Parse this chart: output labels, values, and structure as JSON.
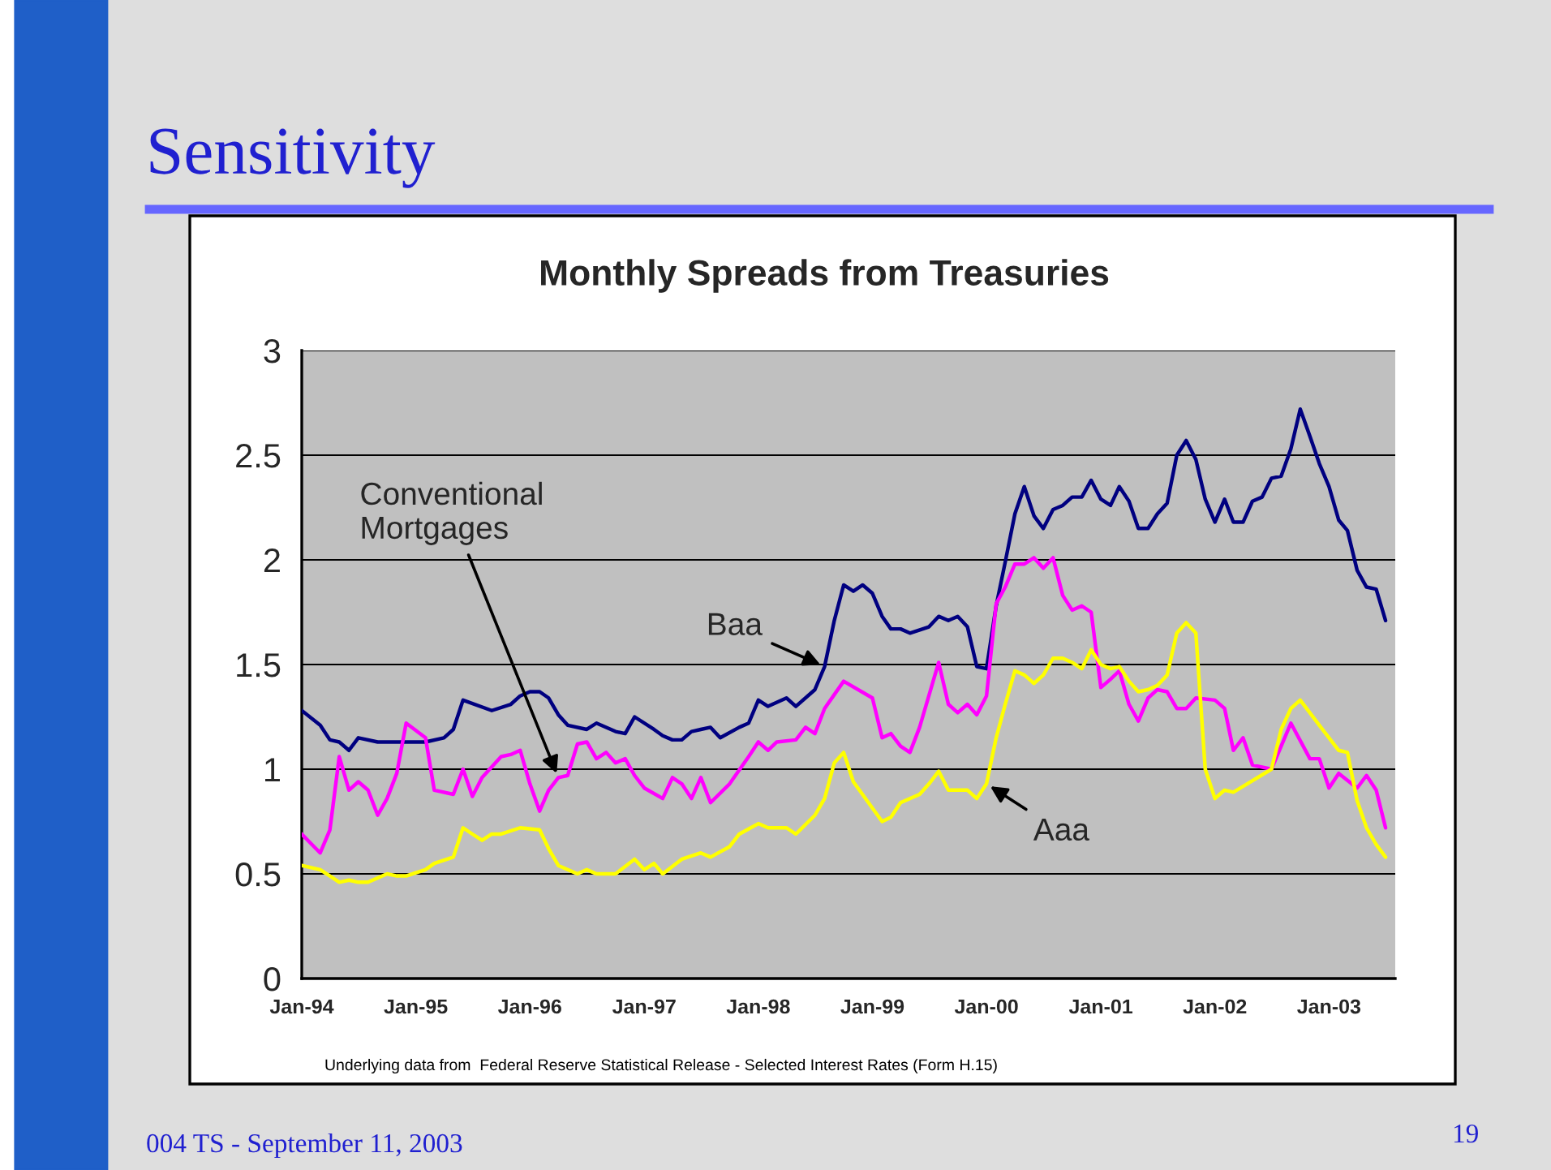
{
  "chart_data": {
    "type": "line",
    "title": "Sensitivity",
    "subtitle": "Monthly Spreads from Treasuries",
    "series": [
      {
        "color": "#000080",
        "x": [
          "1994-01",
          "1994-03",
          "1994-04",
          "1994-05",
          "1994-06",
          "1994-07",
          "1994-09",
          "1995-02",
          "1995-04",
          "1995-05",
          "1995-06",
          "1995-09",
          "1995-11",
          "1995-12",
          "1996-01",
          "1996-02",
          "1996-03",
          "1996-04",
          "1996-05",
          "1996-07",
          "1996-08",
          "1996-10",
          "1996-11",
          "1996-12",
          "1997-02",
          "1997-03",
          "1997-04",
          "1997-05",
          "1997-06",
          "1997-07",
          "1997-08",
          "1997-09",
          "1997-11",
          "1997-12",
          "1998-01",
          "1998-02",
          "1998-04",
          "1998-05",
          "1998-07",
          "1998-08",
          "1998-09",
          "1998-10",
          "1998-11",
          "1998-12",
          "1999-01",
          "1999-02",
          "1999-03",
          "1999-04",
          "1999-05",
          "1999-07",
          "1999-08",
          "1999-09",
          "1999-10",
          "1999-11",
          "1999-12",
          "2000-01",
          "2000-02",
          "2000-03",
          "2000-04",
          "2000-05",
          "2000-06",
          "2000-07",
          "2000-08",
          "2000-09",
          "2000-10",
          "2000-11",
          "2000-12",
          "2001-01",
          "2001-02",
          "2001-03",
          "2001-04",
          "2001-05",
          "2001-06",
          "2001-07",
          "2001-08",
          "2001-09",
          "2001-10",
          "2001-11",
          "2001-12",
          "2002-01",
          "2002-02",
          "2002-03",
          "2002-04",
          "2002-05",
          "2002-06",
          "2002-07",
          "2002-08",
          "2002-09",
          "2002-10",
          "2002-11",
          "2002-12",
          "2003-01",
          "2003-02",
          "2003-03",
          "2003-04",
          "2003-05",
          "2003-06",
          "2003-07"
        ],
        "values": [
          1.28,
          1.21,
          1.14,
          1.13,
          1.09,
          1.15,
          1.13,
          1.13,
          1.15,
          1.19,
          1.33,
          1.28,
          1.31,
          1.35,
          1.37,
          1.37,
          1.34,
          1.26,
          1.21,
          1.19,
          1.22,
          1.18,
          1.17,
          1.25,
          1.19,
          1.16,
          1.14,
          1.14,
          1.18,
          1.19,
          1.2,
          1.15,
          1.2,
          1.22,
          1.33,
          1.3,
          1.34,
          1.3,
          1.38,
          1.49,
          1.71,
          1.88,
          1.85,
          1.88,
          1.84,
          1.73,
          1.67,
          1.67,
          1.65,
          1.68,
          1.73,
          1.71,
          1.73,
          1.68,
          1.49,
          1.48,
          1.78,
          1.99,
          2.22,
          2.35,
          2.21,
          2.15,
          2.24,
          2.26,
          2.3,
          2.3,
          2.38,
          2.29,
          2.26,
          2.35,
          2.28,
          2.15,
          2.15,
          2.22,
          2.27,
          2.5,
          2.57,
          2.48,
          2.29,
          2.18,
          2.29,
          2.18,
          2.18,
          2.28,
          2.3,
          2.39,
          2.4,
          2.53,
          2.72,
          2.59,
          2.46,
          2.35,
          2.19,
          2.14,
          1.95,
          1.87,
          1.86,
          1.71
        ]
      },
      {
        "color": "#ff00ff",
        "x": [
          "1994-01",
          "1994-03",
          "1994-04",
          "1994-05",
          "1994-06",
          "1994-07",
          "1994-08",
          "1994-09",
          "1994-10",
          "1994-11",
          "1994-12",
          "1995-02",
          "1995-03",
          "1995-05",
          "1995-06",
          "1995-07",
          "1995-08",
          "1995-10",
          "1995-11",
          "1995-12",
          "1996-01",
          "1996-02",
          "1996-03",
          "1996-04",
          "1996-05",
          "1996-06",
          "1996-07",
          "1996-08",
          "1996-09",
          "1996-10",
          "1996-11",
          "1996-12",
          "1997-01",
          "1997-03",
          "1997-04",
          "1997-05",
          "1997-06",
          "1997-07",
          "1997-08",
          "1997-10",
          "1997-12",
          "1998-01",
          "1998-02",
          "1998-03",
          "1998-05",
          "1998-06",
          "1998-07",
          "1998-08",
          "1998-10",
          "1999-01",
          "1999-02",
          "1999-03",
          "1999-04",
          "1999-05",
          "1999-06",
          "1999-08",
          "1999-09",
          "1999-10",
          "1999-11",
          "1999-12",
          "2000-01",
          "2000-02",
          "2000-03",
          "2000-04",
          "2000-05",
          "2000-06",
          "2000-07",
          "2000-08",
          "2000-09",
          "2000-10",
          "2000-11",
          "2000-12",
          "2001-01",
          "2001-02",
          "2001-03",
          "2001-04",
          "2001-05",
          "2001-06",
          "2001-07",
          "2001-08",
          "2001-09",
          "2001-10",
          "2001-11",
          "2002-01",
          "2002-02",
          "2002-03",
          "2002-04",
          "2002-05",
          "2002-07",
          "2002-08",
          "2002-09",
          "2002-11",
          "2002-12",
          "2003-01",
          "2003-02",
          "2003-04",
          "2003-05",
          "2003-06",
          "2003-07"
        ],
        "values": [
          0.69,
          0.6,
          0.71,
          1.06,
          0.9,
          0.94,
          0.9,
          0.78,
          0.86,
          0.98,
          1.22,
          1.15,
          0.9,
          0.88,
          1.0,
          0.87,
          0.96,
          1.06,
          1.07,
          1.09,
          0.93,
          0.8,
          0.9,
          0.96,
          0.97,
          1.12,
          1.13,
          1.05,
          1.08,
          1.03,
          1.05,
          0.97,
          0.91,
          0.86,
          0.96,
          0.93,
          0.86,
          0.96,
          0.84,
          0.93,
          1.06,
          1.13,
          1.09,
          1.13,
          1.14,
          1.2,
          1.17,
          1.29,
          1.42,
          1.34,
          1.15,
          1.17,
          1.11,
          1.08,
          1.2,
          1.51,
          1.31,
          1.27,
          1.31,
          1.26,
          1.35,
          1.79,
          1.87,
          1.98,
          1.98,
          2.01,
          1.96,
          2.01,
          1.83,
          1.76,
          1.78,
          1.75,
          1.39,
          1.43,
          1.47,
          1.31,
          1.23,
          1.34,
          1.38,
          1.37,
          1.29,
          1.29,
          1.34,
          1.33,
          1.29,
          1.09,
          1.15,
          1.02,
          1.0,
          1.11,
          1.22,
          1.05,
          1.05,
          0.91,
          0.98,
          0.91,
          0.97,
          0.9,
          0.72
        ]
      },
      {
        "color": "#ffff00",
        "x": [
          "1994-01",
          "1994-03",
          "1994-04",
          "1994-05",
          "1994-06",
          "1994-07",
          "1994-08",
          "1994-10",
          "1994-11",
          "1994-12",
          "1995-02",
          "1995-03",
          "1995-05",
          "1995-06",
          "1995-07",
          "1995-08",
          "1995-09",
          "1995-10",
          "1995-12",
          "1996-02",
          "1996-03",
          "1996-04",
          "1996-06",
          "1996-07",
          "1996-08",
          "1996-10",
          "1996-12",
          "1997-01",
          "1997-02",
          "1997-03",
          "1997-05",
          "1997-07",
          "1997-08",
          "1997-10",
          "1997-11",
          "1998-01",
          "1998-02",
          "1998-04",
          "1998-05",
          "1998-07",
          "1998-08",
          "1998-09",
          "1998-10",
          "1998-11",
          "1999-02",
          "1999-03",
          "1999-04",
          "1999-06",
          "1999-07",
          "1999-08",
          "1999-09",
          "1999-11",
          "1999-12",
          "2000-01",
          "2000-02",
          "2000-03",
          "2000-04",
          "2000-05",
          "2000-06",
          "2000-07",
          "2000-08",
          "2000-09",
          "2000-10",
          "2000-11",
          "2000-12",
          "2001-01",
          "2001-02",
          "2001-03",
          "2001-04",
          "2001-05",
          "2001-06",
          "2001-07",
          "2001-08",
          "2001-09",
          "2001-10",
          "2001-11",
          "2001-12",
          "2002-01",
          "2002-02",
          "2002-03",
          "2002-07",
          "2002-08",
          "2002-09",
          "2002-10",
          "2002-12",
          "2003-01",
          "2003-02",
          "2003-03",
          "2003-04",
          "2003-05",
          "2003-06",
          "2003-07"
        ],
        "values": [
          0.54,
          0.52,
          0.49,
          0.46,
          0.47,
          0.46,
          0.46,
          0.5,
          0.49,
          0.49,
          0.52,
          0.55,
          0.58,
          0.72,
          0.69,
          0.66,
          0.69,
          0.69,
          0.72,
          0.71,
          0.62,
          0.54,
          0.5,
          0.52,
          0.5,
          0.5,
          0.57,
          0.52,
          0.55,
          0.5,
          0.57,
          0.6,
          0.58,
          0.63,
          0.69,
          0.74,
          0.72,
          0.72,
          0.69,
          0.78,
          0.86,
          1.03,
          1.08,
          0.94,
          0.75,
          0.77,
          0.84,
          0.88,
          0.93,
          0.99,
          0.9,
          0.9,
          0.86,
          0.93,
          1.15,
          1.31,
          1.47,
          1.45,
          1.41,
          1.45,
          1.53,
          1.53,
          1.51,
          1.48,
          1.57,
          1.5,
          1.48,
          1.49,
          1.42,
          1.37,
          1.38,
          1.4,
          1.45,
          1.65,
          1.7,
          1.65,
          1.0,
          0.86,
          0.9,
          0.89,
          1.0,
          1.19,
          1.29,
          1.33,
          1.21,
          1.15,
          1.09,
          1.08,
          0.85,
          0.72,
          0.64,
          0.58
        ]
      }
    ],
    "xlim": [
      "1994-01",
      "2003-08"
    ],
    "xticks": [
      {
        "value": "1994-01",
        "label": "Jan-94"
      },
      {
        "value": "1995-01",
        "label": "Jan-95"
      },
      {
        "value": "1996-01",
        "label": "Jan-96"
      },
      {
        "value": "1997-01",
        "label": "Jan-97"
      },
      {
        "value": "1998-01",
        "label": "Jan-98"
      },
      {
        "value": "1999-01",
        "label": "Jan-99"
      },
      {
        "value": "2000-01",
        "label": "Jan-00"
      },
      {
        "value": "2001-01",
        "label": "Jan-01"
      },
      {
        "value": "2002-01",
        "label": "Jan-02"
      },
      {
        "value": "2003-01",
        "label": "Jan-03"
      }
    ],
    "ylim": [
      0,
      3
    ],
    "yticks": [
      0,
      0.5,
      1,
      1.5,
      2,
      2.5,
      3
    ],
    "grid": "y",
    "legend": false,
    "marker": "none",
    "line_style": "solid",
    "annotations": [
      {
        "text": "Conventional\nMortgages",
        "x": "1996-04",
        "y": 0.96
      },
      {
        "text": "Baa",
        "x": "1998-08",
        "y": 1.49
      },
      {
        "text": "Aaa",
        "x": "2000-01",
        "y": 0.93
      },
      "Underlying data from  Federal Reserve Statistical Release - Selected Interest Rates (Form H.15)",
      "004 TS - September 11, 2003",
      "19"
    ]
  }
}
